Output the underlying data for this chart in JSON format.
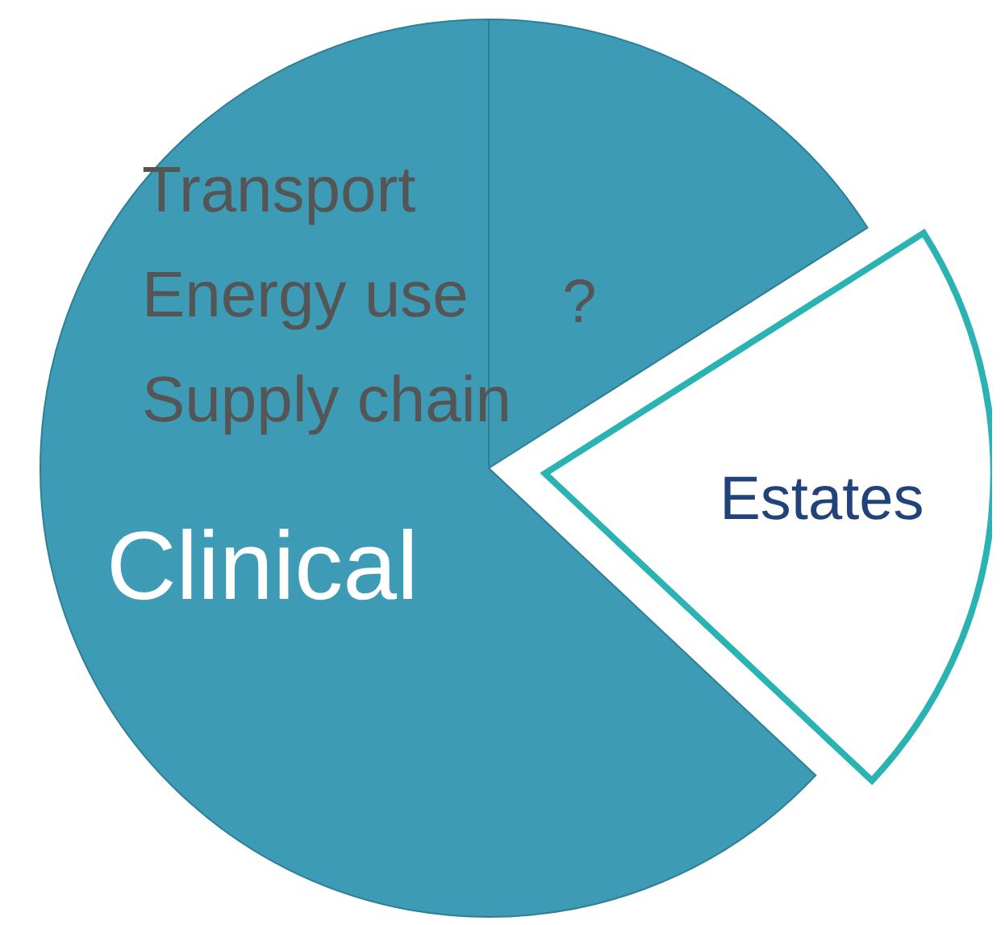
{
  "chart_data": {
    "type": "pie",
    "categories": [
      "?",
      "Estates",
      "Clinical"
    ],
    "values": [
      16,
      21,
      63
    ],
    "colors": [
      "#3d9bb5",
      "#ffffff",
      "#3d9bb5"
    ],
    "annotations": [
      "Transport",
      "Energy use",
      "Supply chain"
    ]
  }
}
